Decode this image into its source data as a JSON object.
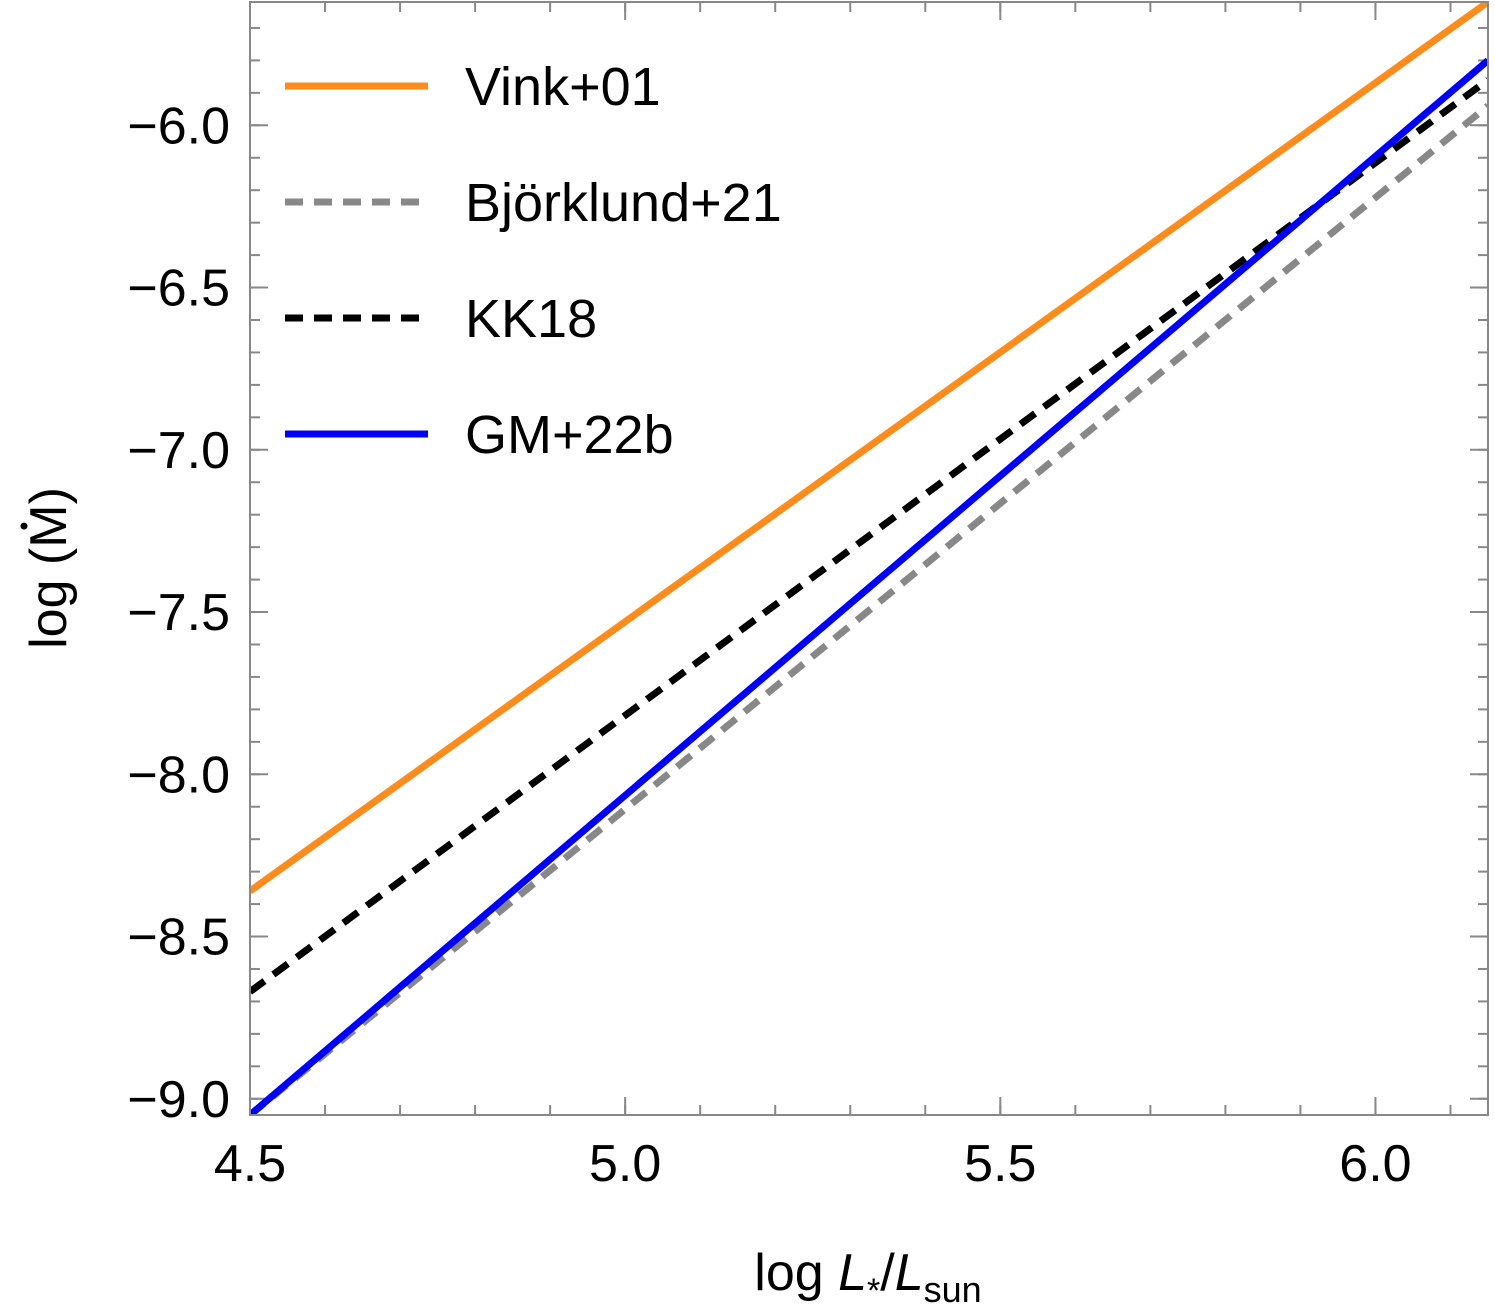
{
  "chart_data": {
    "type": "line",
    "xlabel": {
      "prefix": "log ",
      "var1": "L",
      "sub1": "*",
      "slash": "/",
      "var2": "L",
      "sub2": "sun"
    },
    "ylabel": {
      "prefix": "log (",
      "var": "M",
      "suffix": ")"
    },
    "xlim": [
      4.5,
      6.15
    ],
    "ylim": [
      -9.05,
      -5.62
    ],
    "xticks": [
      4.5,
      5.0,
      5.5,
      6.0
    ],
    "xtick_labels": [
      "4.5",
      "5.0",
      "5.5",
      "6.0"
    ],
    "yticks": [
      -6.0,
      -6.5,
      -7.0,
      -7.5,
      -8.0,
      -8.5,
      -9.0
    ],
    "ytick_labels": [
      "−6.0",
      "−6.5",
      "−7.0",
      "−7.5",
      "−8.0",
      "−8.5",
      "−9.0"
    ],
    "grid": false,
    "legend_position": "top-left",
    "series": [
      {
        "name": "Vink+01",
        "color": "#ff8c1a",
        "dash": "solid",
        "x": [
          4.5,
          6.15
        ],
        "y": [
          -8.36,
          -5.62
        ]
      },
      {
        "name": "Björklund+21",
        "color": "#888888",
        "dash": "dashed",
        "x": [
          4.5,
          6.15
        ],
        "y": [
          -9.05,
          -5.94
        ]
      },
      {
        "name": "KK18",
        "color": "#000000",
        "dash": "dashed",
        "x": [
          4.5,
          6.15
        ],
        "y": [
          -8.67,
          -5.86
        ]
      },
      {
        "name": "GM+22b",
        "color": "#0000ff",
        "dash": "solid",
        "x": [
          4.5,
          6.15
        ],
        "y": [
          -9.05,
          -5.8
        ]
      }
    ]
  }
}
